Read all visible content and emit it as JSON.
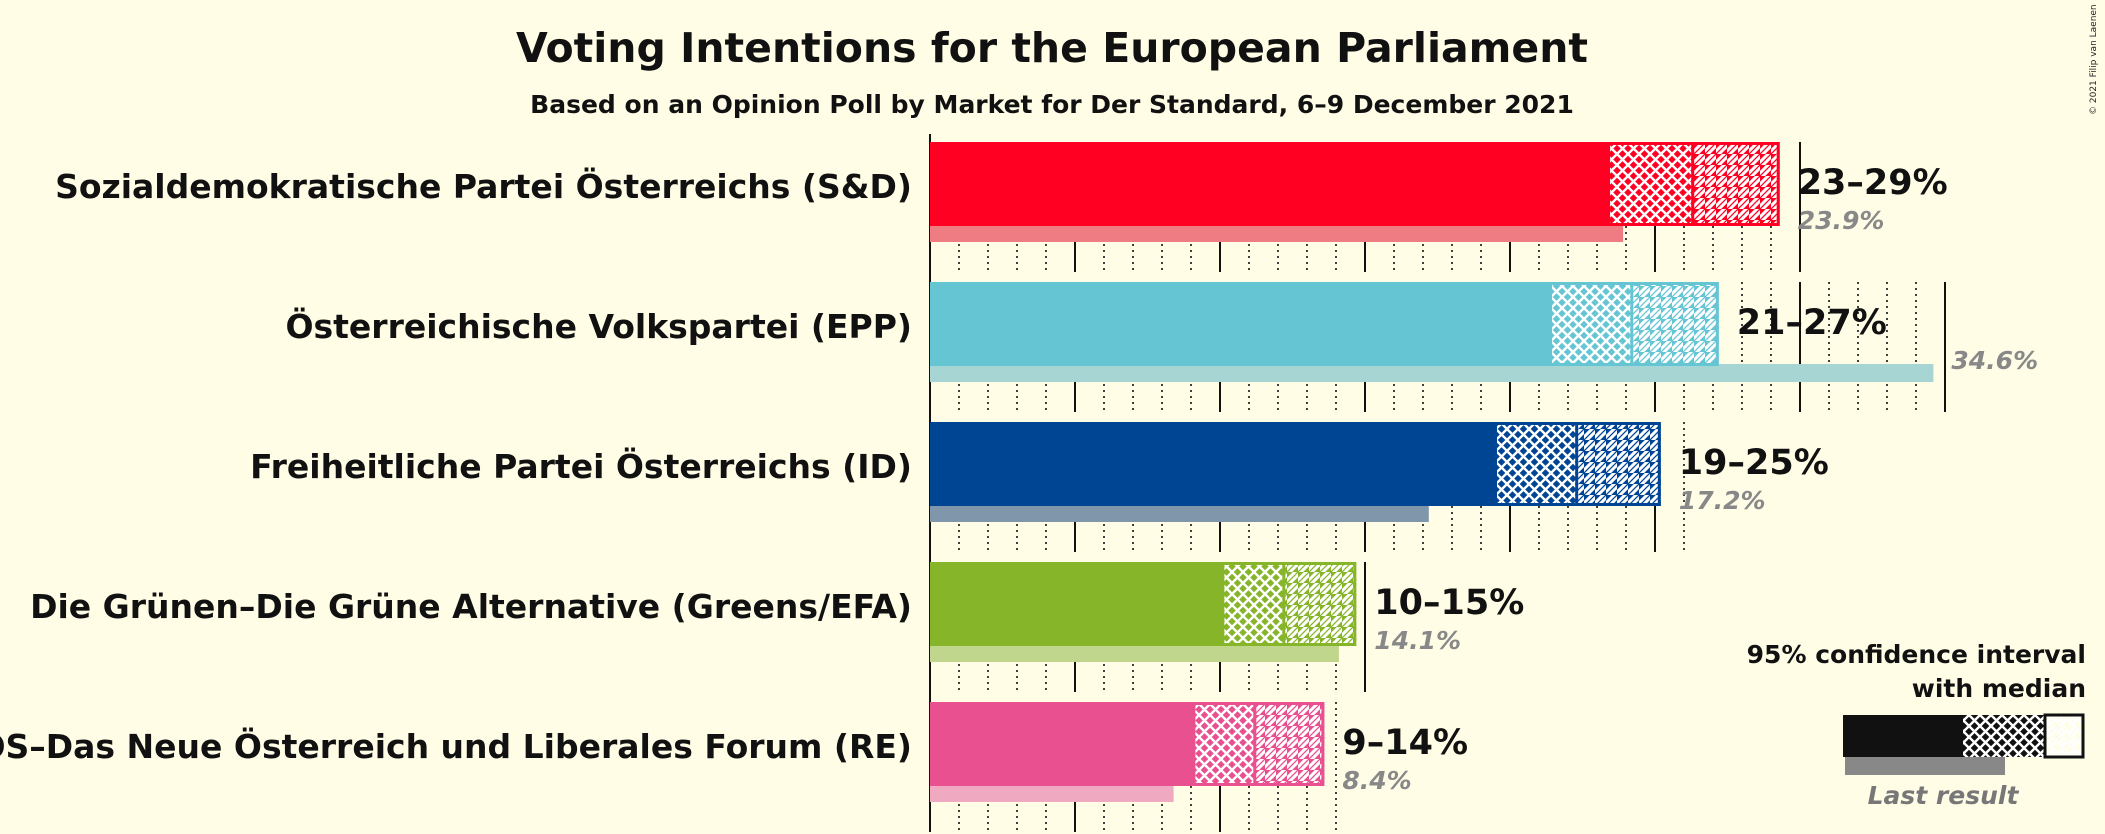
{
  "title": "Voting Intentions for the European Parliament",
  "subtitle": "Based on an Opinion Poll by Market for Der Standard, 6–9 December 2021",
  "copyright": "© 2021 Filip van Laenen",
  "legend": {
    "line1": "95% confidence interval",
    "line2": "with median",
    "last_result": "Last result"
  },
  "chart_data": {
    "type": "bar",
    "orientation": "horizontal",
    "title": "Voting Intentions for the European Parliament",
    "subtitle": "Based on an Opinion Poll by Market for Der Standard, 6–9 December 2021",
    "categories": [
      "Sozialdemokratische Partei Österreichs (S&D)",
      "Österreichische Volkspartei (EPP)",
      "Freiheitliche Partei Österreichs (ID)",
      "Die Grünen–Die Grüne Alternative (Greens/EFA)",
      "NEOS–Das Neue Österreich und Liberales Forum (RE)"
    ],
    "parties": [
      {
        "name": "Sozialdemokratische Partei Österreichs (S&D)",
        "color": "#ff0022",
        "light": "#ee7c82",
        "ci80_low": 23.4,
        "median": 26.3,
        "ci95_high": 29.3,
        "range_label": "23–29%",
        "last_result": 23.9,
        "last_label": "23.9%"
      },
      {
        "name": "Österreichische Volkspartei (EPP)",
        "color": "#66c5d3",
        "light": "#a7d5d3",
        "ci80_low": 21.4,
        "median": 24.2,
        "ci95_high": 27.2,
        "range_label": "21–27%",
        "last_result": 34.6,
        "last_label": "34.6%"
      },
      {
        "name": "Freiheitliche Partei Österreichs (ID)",
        "color": "#004494",
        "light": "#8097ab",
        "ci80_low": 19.5,
        "median": 22.3,
        "ci95_high": 25.2,
        "range_label": "19–25%",
        "last_result": 17.2,
        "last_label": "17.2%"
      },
      {
        "name": "Die Grünen–Die Grüne Alternative (Greens/EFA)",
        "color": "#87b52a",
        "light": "#c0d68c",
        "ci80_low": 10.1,
        "median": 12.2,
        "ci95_high": 14.7,
        "range_label": "10–15%",
        "last_result": 14.1,
        "last_label": "14.1%"
      },
      {
        "name": "NEOS–Das Neue Österreich und Liberales Forum (RE)",
        "color": "#e8508f",
        "light": "#efa9c1",
        "ci80_low": 9.1,
        "median": 11.2,
        "ci95_high": 13.6,
        "range_label": "9–14%",
        "last_result": 8.4,
        "last_label": "8.4%"
      }
    ],
    "xlim": [
      0,
      35
    ],
    "major_gridlines_every": 5,
    "minor_gridlines_every": 1
  }
}
